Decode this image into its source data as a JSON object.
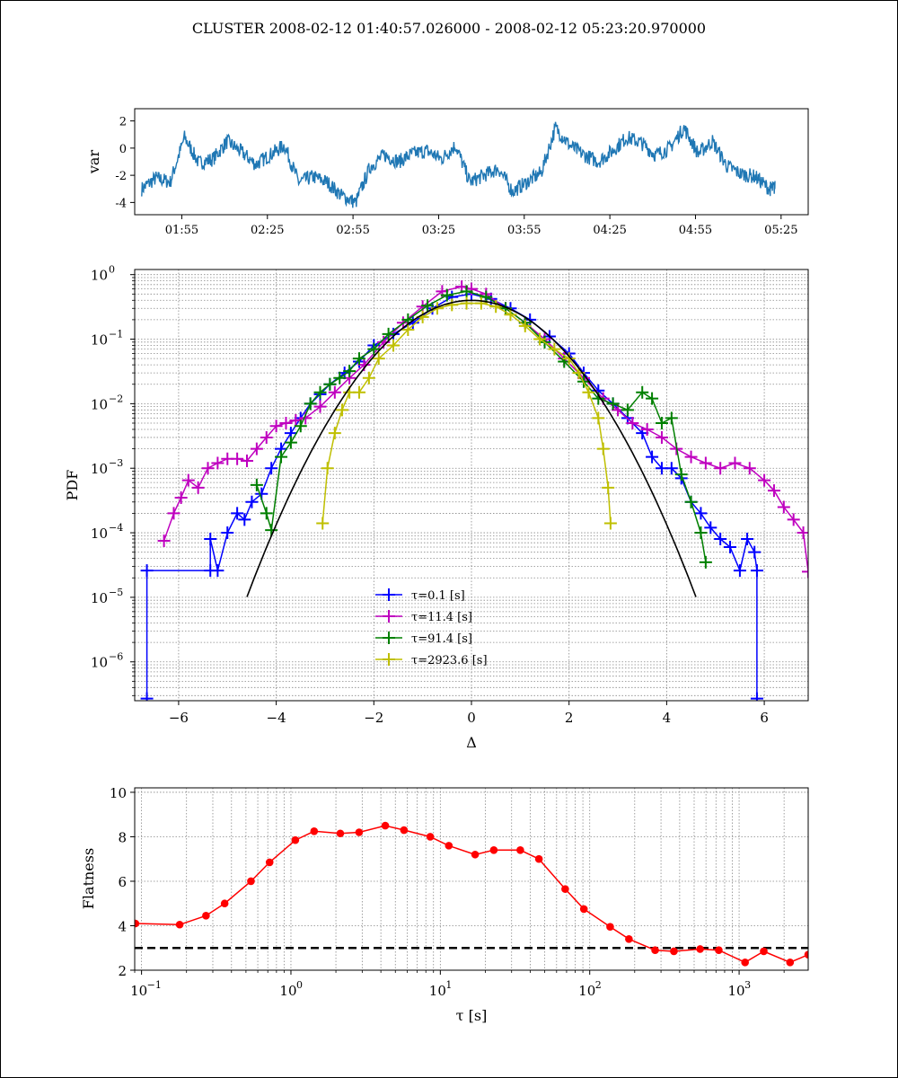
{
  "figure": {
    "title": "CLUSTER  2008-02-12 01:40:57.026000 - 2008-02-12 05:23:20.970000"
  },
  "chart_data": [
    {
      "id": "timeseries",
      "type": "line",
      "ylabel": "var",
      "xlabel": "",
      "x_range": [
        "01:35",
        "05:29"
      ],
      "ylim": [
        -4.9,
        2.9
      ],
      "yticks": [
        2,
        0,
        -2,
        -4
      ],
      "xticks": [
        "01:55",
        "02:25",
        "02:55",
        "03:25",
        "03:55",
        "04:25",
        "04:55",
        "05:25"
      ],
      "color": "#1f77b4",
      "series": [
        {
          "x_minutes": [
            0,
            5,
            10,
            15,
            20,
            25,
            30,
            35,
            40,
            45,
            50,
            55,
            60,
            65,
            70,
            75,
            80,
            85,
            90,
            95,
            100,
            105,
            110,
            115,
            120,
            125,
            130,
            135,
            140,
            145,
            150,
            155,
            160,
            165,
            170,
            175,
            180,
            185,
            190,
            195,
            200,
            205,
            210,
            215,
            220,
            222
          ],
          "values": [
            -3.0,
            -2.2,
            -2.5,
            0.8,
            -1.1,
            -0.8,
            0.5,
            -0.3,
            -1.2,
            -0.5,
            0.2,
            -2.5,
            -2.1,
            -2.5,
            -3.5,
            -4.0,
            -1.4,
            -0.5,
            -1.0,
            -0.4,
            -0.2,
            -0.8,
            0.2,
            -2.5,
            -2.0,
            -1.5,
            -3.2,
            -2.5,
            -1.8,
            1.5,
            0.2,
            -0.5,
            -1.0,
            -0.2,
            0.8,
            0.4,
            -0.5,
            0.0,
            1.5,
            -0.4,
            0.5,
            -1.3,
            -1.9,
            -2.1,
            -3.0,
            -2.9
          ]
        }
      ]
    },
    {
      "id": "pdf",
      "type": "line",
      "xlabel": "Δ",
      "ylabel": "PDF",
      "yscale": "log",
      "xlim": [
        -6.9,
        6.9
      ],
      "ylim": [
        2.5e-07,
        1.2
      ],
      "xticks": [
        -6,
        -4,
        -2,
        0,
        2,
        4,
        6
      ],
      "xtick_labels": [
        "−6",
        "−4",
        "−2",
        "0",
        "2",
        "4",
        "6"
      ],
      "ytick_labels": [
        "10",
        "10",
        "10",
        "10",
        "10",
        "10",
        "10"
      ],
      "ytick_exponents": [
        "0",
        "−1",
        "−2",
        "−3",
        "−4",
        "−5",
        "−6"
      ],
      "grid": true,
      "legend_position": "lower center",
      "series": [
        {
          "name": "τ=0.1 [s]",
          "color": "#0000ff",
          "x": [
            -6.65,
            -6.65,
            -5.35,
            -5.35,
            -5.2,
            -5.0,
            -4.8,
            -4.65,
            -4.5,
            -4.3,
            -4.1,
            -3.9,
            -3.7,
            -3.5,
            -3.3,
            -3.1,
            -2.9,
            -2.6,
            -2.3,
            -2.0,
            -1.6,
            -1.2,
            -0.8,
            -0.4,
            0.0,
            0.4,
            0.8,
            1.2,
            1.6,
            2.0,
            2.3,
            2.6,
            2.9,
            3.2,
            3.5,
            3.7,
            3.9,
            4.1,
            4.3,
            4.5,
            4.7,
            4.9,
            5.1,
            5.3,
            5.5,
            5.65,
            5.8,
            5.85,
            5.85
          ],
          "y": [
            2.7e-07,
            2.6e-05,
            2.6e-05,
            8e-05,
            2.6e-05,
            0.0001,
            0.0002,
            0.00016,
            0.0003,
            0.0004,
            0.001,
            0.002,
            0.0035,
            0.006,
            0.01,
            0.014,
            0.02,
            0.03,
            0.045,
            0.08,
            0.12,
            0.18,
            0.3,
            0.45,
            0.5,
            0.42,
            0.3,
            0.2,
            0.11,
            0.06,
            0.03,
            0.016,
            0.01,
            0.006,
            0.0035,
            0.0015,
            0.001,
            0.001,
            0.0007,
            0.0003,
            0.0002,
            0.00012,
            8e-05,
            6e-05,
            2.6e-05,
            8e-05,
            5e-05,
            2.6e-05,
            2.7e-07
          ]
        },
        {
          "name": "τ=11.4 [s]",
          "color": "#bf00bf",
          "x": [
            -6.3,
            -6.1,
            -5.95,
            -5.8,
            -5.6,
            -5.4,
            -5.2,
            -5.0,
            -4.8,
            -4.6,
            -4.4,
            -4.2,
            -4.0,
            -3.8,
            -3.6,
            -3.4,
            -3.1,
            -2.8,
            -2.5,
            -2.2,
            -1.8,
            -1.4,
            -1.0,
            -0.6,
            -0.2,
            0.0,
            0.3,
            0.7,
            1.1,
            1.5,
            1.9,
            2.3,
            2.7,
            3.0,
            3.3,
            3.6,
            3.9,
            4.2,
            4.5,
            4.8,
            5.1,
            5.4,
            5.7,
            6.0,
            6.2,
            6.4,
            6.6,
            6.8,
            6.9
          ],
          "y": [
            7.5e-05,
            0.0002,
            0.00035,
            0.00065,
            0.0005,
            0.001,
            0.0012,
            0.0014,
            0.0014,
            0.0013,
            0.002,
            0.003,
            0.0045,
            0.005,
            0.0055,
            0.006,
            0.009,
            0.015,
            0.025,
            0.04,
            0.09,
            0.18,
            0.32,
            0.55,
            0.65,
            0.6,
            0.5,
            0.3,
            0.18,
            0.1,
            0.05,
            0.025,
            0.012,
            0.008,
            0.005,
            0.004,
            0.003,
            0.002,
            0.0015,
            0.0012,
            0.001,
            0.0012,
            0.001,
            0.00065,
            0.00045,
            0.00025,
            0.00016,
            0.0001,
            2.5e-05
          ]
        },
        {
          "name": "τ=91.4 [s]",
          "color": "#008000",
          "x": [
            -4.4,
            -4.2,
            -4.1,
            -3.9,
            -3.7,
            -3.5,
            -3.3,
            -3.1,
            -2.9,
            -2.7,
            -2.5,
            -2.3,
            -2.0,
            -1.7,
            -1.3,
            -0.9,
            -0.5,
            -0.1,
            0.3,
            0.7,
            1.1,
            1.5,
            1.9,
            2.3,
            2.6,
            2.9,
            3.2,
            3.5,
            3.7,
            3.9,
            4.1,
            4.3,
            4.5,
            4.7,
            4.8
          ],
          "y": [
            0.00055,
            0.0002,
            0.00011,
            0.0015,
            0.0025,
            0.0045,
            0.01,
            0.015,
            0.02,
            0.025,
            0.032,
            0.05,
            0.07,
            0.12,
            0.2,
            0.33,
            0.48,
            0.55,
            0.45,
            0.3,
            0.18,
            0.09,
            0.045,
            0.022,
            0.012,
            0.01,
            0.008,
            0.015,
            0.012,
            0.005,
            0.006,
            0.0008,
            0.0003,
            0.0001,
            3.5e-05
          ]
        },
        {
          "name": "τ=2923.6 [s]",
          "color": "#bfbf00",
          "x": [
            -3.05,
            -2.95,
            -2.8,
            -2.65,
            -2.5,
            -2.3,
            -2.1,
            -1.9,
            -1.6,
            -1.3,
            -1.0,
            -0.7,
            -0.4,
            -0.1,
            0.2,
            0.5,
            0.8,
            1.1,
            1.4,
            1.7,
            2.0,
            2.2,
            2.4,
            2.6,
            2.7,
            2.8,
            2.85
          ],
          "y": [
            0.00014,
            0.001,
            0.0035,
            0.008,
            0.015,
            0.015,
            0.025,
            0.05,
            0.08,
            0.14,
            0.22,
            0.3,
            0.34,
            0.36,
            0.36,
            0.32,
            0.24,
            0.16,
            0.1,
            0.07,
            0.05,
            0.03,
            0.015,
            0.006,
            0.002,
            0.0005,
            0.00014
          ]
        },
        {
          "name": "",
          "color": "#000000",
          "gaussian": true,
          "x_range": [
            -4.6,
            4.6
          ],
          "peak": 0.399
        }
      ]
    },
    {
      "id": "flatness",
      "type": "line",
      "xlabel": "τ [s]",
      "ylabel": "Flatness",
      "xscale": "log",
      "xlim": [
        0.09,
        2900
      ],
      "ylim": [
        2,
        10.2
      ],
      "yticks": [
        2,
        4,
        6,
        8,
        10
      ],
      "xtick_labels": [
        "10",
        "10",
        "10",
        "10",
        "10"
      ],
      "xtick_exponents": [
        "−1",
        "0",
        "1",
        "2",
        "3"
      ],
      "grid": true,
      "reference_line": {
        "y": 3,
        "style": "dashed",
        "color": "#000000"
      },
      "series": [
        {
          "color": "#ff0000",
          "x": [
            0.091,
            0.18,
            0.27,
            0.36,
            0.54,
            0.72,
            1.07,
            1.43,
            2.14,
            2.86,
            4.28,
            5.71,
            8.56,
            11.4,
            17.1,
            22.8,
            34.3,
            45.7,
            68.5,
            91.4,
            137,
            183,
            274,
            366,
            548,
            731,
            1096,
            1462,
            2193,
            2900
          ],
          "values": [
            4.1,
            4.05,
            4.45,
            5.0,
            6.0,
            6.85,
            7.85,
            8.25,
            8.15,
            8.2,
            8.5,
            8.3,
            8.0,
            7.6,
            7.2,
            7.4,
            7.4,
            7.0,
            5.65,
            4.75,
            3.95,
            3.4,
            2.9,
            2.85,
            2.95,
            2.9,
            2.35,
            2.85,
            2.35,
            2.7
          ]
        }
      ]
    }
  ]
}
